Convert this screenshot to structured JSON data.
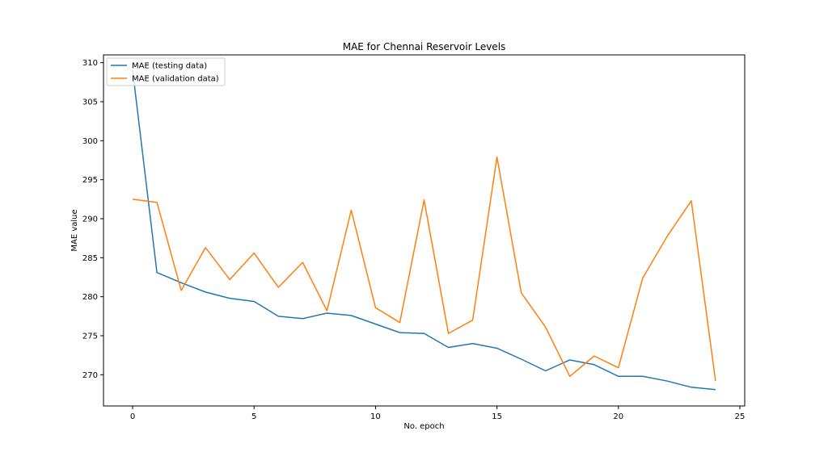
{
  "chart_data": {
    "type": "line",
    "title": "MAE for Chennai Reservoir Levels",
    "xlabel": "No. epoch",
    "ylabel": "MAE value",
    "x": [
      0,
      1,
      2,
      3,
      4,
      5,
      6,
      7,
      8,
      9,
      10,
      11,
      12,
      13,
      14,
      15,
      16,
      17,
      18,
      19,
      20,
      21,
      22,
      23,
      24
    ],
    "xlim": [
      -1.2,
      25.2
    ],
    "ylim": [
      266,
      311
    ],
    "xticks": [
      0,
      5,
      10,
      15,
      20,
      25
    ],
    "yticks": [
      270,
      275,
      280,
      285,
      290,
      295,
      300,
      305,
      310
    ],
    "grid": false,
    "legend_position": "top-left",
    "series": [
      {
        "name": "MAE (testing data)",
        "color": "#1f77b4",
        "values": [
          309.0,
          283.1,
          281.8,
          280.6,
          279.8,
          279.4,
          277.5,
          277.2,
          277.9,
          277.6,
          276.5,
          275.4,
          275.3,
          273.5,
          274.0,
          273.4,
          272.0,
          270.5,
          271.9,
          271.3,
          269.8,
          269.8,
          269.2,
          268.4,
          268.1
        ]
      },
      {
        "name": "MAE (validation data)",
        "color": "#ff7f0e",
        "values": [
          292.5,
          292.1,
          280.8,
          286.3,
          282.2,
          285.6,
          281.2,
          284.4,
          278.2,
          291.1,
          278.6,
          276.7,
          292.4,
          275.3,
          277.0,
          297.9,
          280.5,
          276.1,
          269.8,
          272.4,
          270.9,
          282.4,
          287.7,
          292.3,
          269.2
        ]
      }
    ]
  }
}
